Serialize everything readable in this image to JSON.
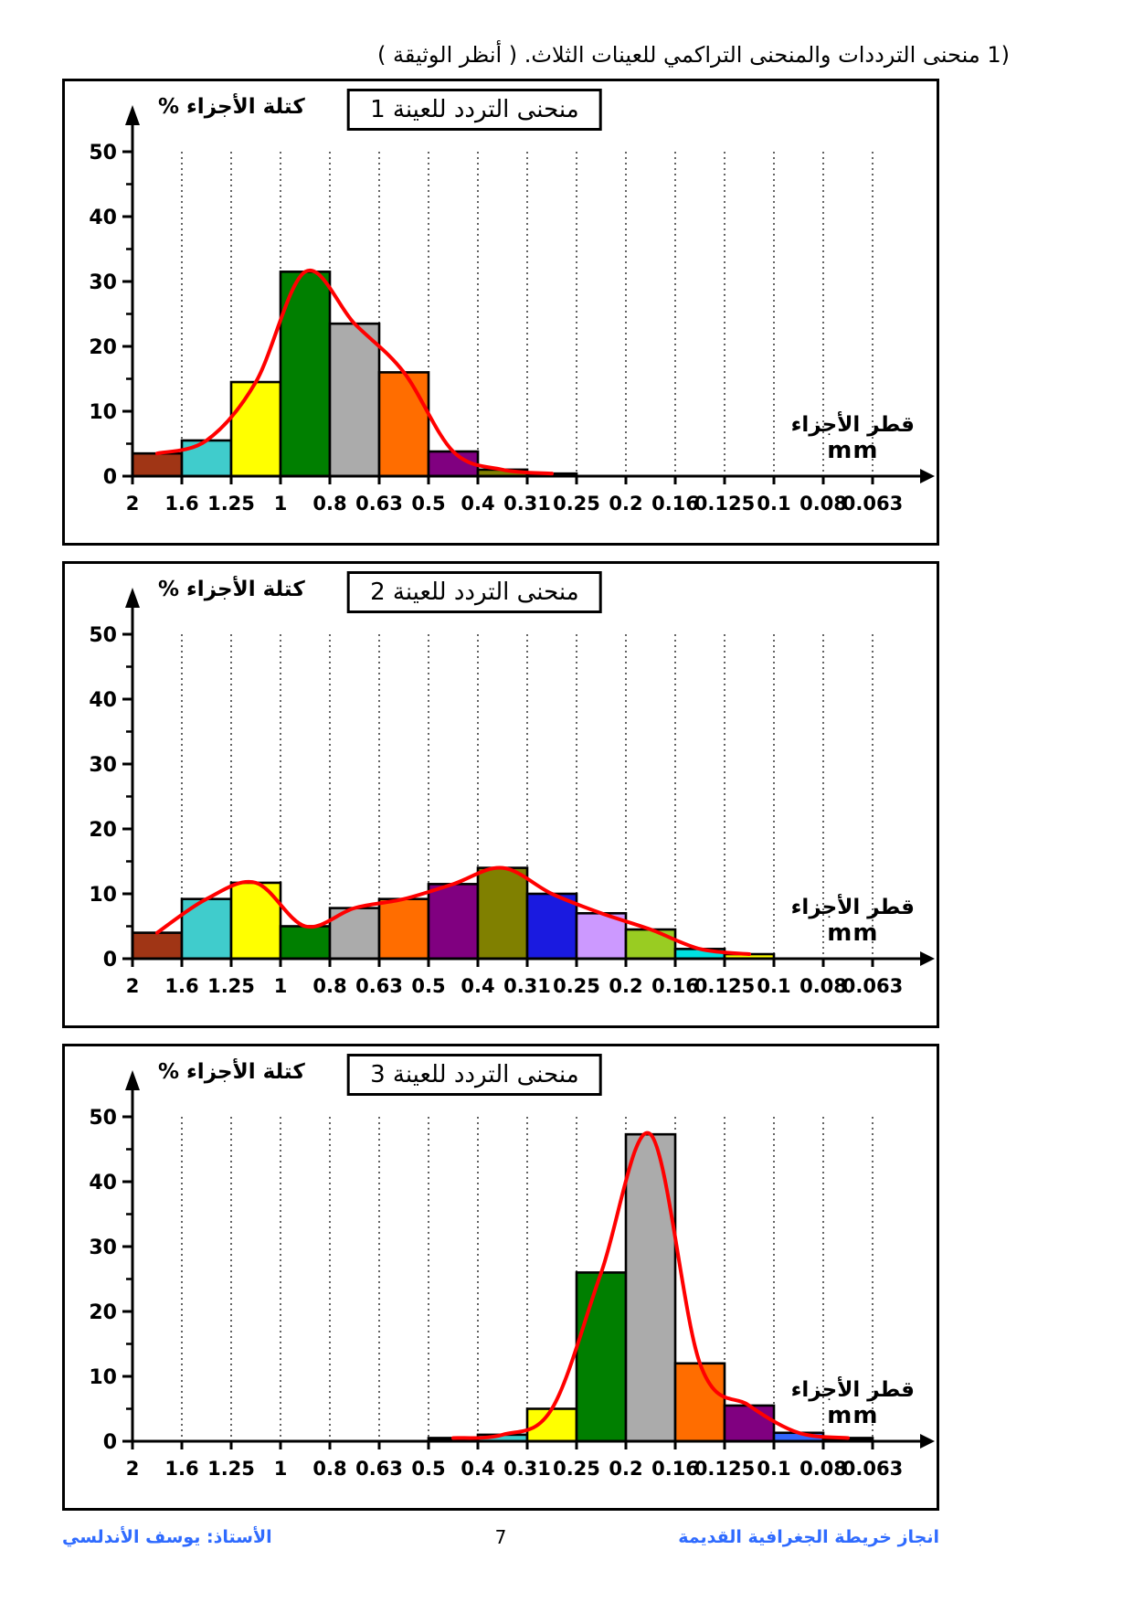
{
  "page": {
    "title_num": "1)",
    "title_ar": "منحنى الترددات والمنحنى التراكمي للعينات الثلاث. ( أنظر الوثيقة )",
    "footer_right": "انجاز خريطة الجغرافية القديمة",
    "footer_center": "7",
    "footer_left": "الأستاذ: يوسف الأندلسي",
    "footer_color": "#2f6bff"
  },
  "axes": {
    "ylabel": "كتلة الأجزاء %",
    "xlabel_line1": "قطر الأجزاء",
    "xlabel_line2": "mm",
    "x_ticks": [
      "2",
      "1.6",
      "1.25",
      "1",
      "0.8",
      "0.63",
      "0.5",
      "0.4",
      "0.31",
      "0.25",
      "0.2",
      "0.16",
      "0.125",
      "0.1",
      "0.08",
      "0.063"
    ],
    "y_ticks": [
      0,
      10,
      20,
      30,
      40,
      50
    ],
    "ylim": [
      0,
      50
    ],
    "grid": "vertical-dotted",
    "curve_color": "#ff0000",
    "axis_color": "#000000"
  },
  "chart_data": [
    {
      "type": "bar",
      "subtype": "histogram-with-smoothed-frequency-curve",
      "title": "منحنى التردد للعينة 1",
      "x_bin_edges_mm": [
        "2",
        "1.6",
        "1.25",
        "1",
        "0.8",
        "0.63",
        "0.5",
        "0.4",
        "0.31",
        "0.25",
        "0.2",
        "0.16",
        "0.125",
        "0.1",
        "0.08",
        "0.063"
      ],
      "values": [
        3.5,
        5.5,
        14.5,
        31.5,
        23.5,
        16,
        3.8,
        1,
        0.4,
        0,
        0,
        0,
        0,
        0,
        0
      ],
      "colors": [
        "#a03515",
        "#40cccc",
        "#ffff00",
        "#007f00",
        "#ababab",
        "#ff6d00",
        "#800080",
        "#808000",
        "#000000",
        null,
        null,
        null,
        null,
        null,
        null
      ]
    },
    {
      "type": "bar",
      "subtype": "histogram-with-smoothed-frequency-curve",
      "title": "منحنى التردد للعينة 2",
      "x_bin_edges_mm": [
        "2",
        "1.6",
        "1.25",
        "1",
        "0.8",
        "0.63",
        "0.5",
        "0.4",
        "0.31",
        "0.25",
        "0.2",
        "0.16",
        "0.125",
        "0.1",
        "0.08",
        "0.063"
      ],
      "values": [
        4,
        9.2,
        11.7,
        5,
        7.8,
        9.2,
        11.5,
        14,
        10,
        7,
        4.5,
        1.5,
        0.7,
        0,
        0
      ],
      "colors": [
        "#a03515",
        "#40cccc",
        "#ffff00",
        "#007f00",
        "#ababab",
        "#ff6d00",
        "#800080",
        "#808000",
        "#1a1ae0",
        "#cc99ff",
        "#99cc22",
        "#00e0e0",
        "#ffff00",
        null,
        null
      ]
    },
    {
      "type": "bar",
      "subtype": "histogram-with-smoothed-frequency-curve",
      "title": "منحنى التردد للعينة 3",
      "x_bin_edges_mm": [
        "2",
        "1.6",
        "1.25",
        "1",
        "0.8",
        "0.63",
        "0.5",
        "0.4",
        "0.31",
        "0.25",
        "0.2",
        "0.16",
        "0.125",
        "0.1",
        "0.08",
        "0.063"
      ],
      "values": [
        0,
        0,
        0,
        0,
        0,
        0,
        0.5,
        1,
        5,
        26,
        47.3,
        12,
        5.5,
        1.3,
        0.5
      ],
      "colors": [
        null,
        null,
        null,
        null,
        null,
        null,
        "#000000",
        "#40cccc",
        "#ffff00",
        "#007f00",
        "#ababab",
        "#ff6d00",
        "#800080",
        "#3366ff",
        "#000000"
      ]
    }
  ]
}
